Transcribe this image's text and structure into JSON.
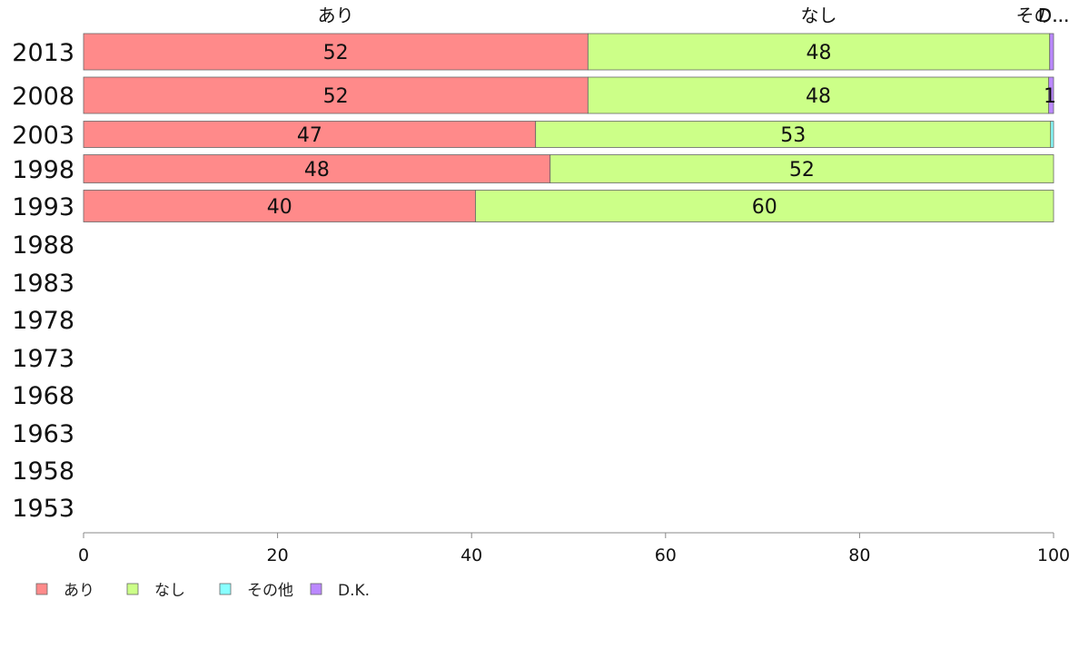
{
  "chart_data": {
    "type": "bar",
    "orientation": "horizontal",
    "stacked": true,
    "categories": [
      "2013",
      "2008",
      "2003",
      "1998",
      "1993",
      "1988",
      "1983",
      "1978",
      "1973",
      "1968",
      "1963",
      "1958",
      "1953"
    ],
    "series": [
      {
        "name": "あり",
        "color": "#ff8a8a",
        "values": [
          52,
          52,
          46.6,
          48.1,
          40.4,
          null,
          null,
          null,
          null,
          null,
          null,
          null,
          null
        ]
      },
      {
        "name": "なし",
        "color": "#ccff88",
        "values": [
          47.6,
          47.5,
          53.1,
          51.9,
          59.6,
          null,
          null,
          null,
          null,
          null,
          null,
          null,
          null
        ]
      },
      {
        "name": "その他",
        "color": "#88ffff",
        "values": [
          0,
          0,
          0.3,
          0,
          0,
          null,
          null,
          null,
          null,
          null,
          null,
          null,
          null
        ]
      },
      {
        "name": "D.K.",
        "color": "#bb88ff",
        "values": [
          0.4,
          0.5,
          0,
          0,
          0,
          null,
          null,
          null,
          null,
          null,
          null,
          null,
          null
        ]
      }
    ],
    "data_labels": [
      [
        "52",
        "48",
        "",
        ""
      ],
      [
        "52",
        "48",
        "",
        "1"
      ],
      [
        "47",
        "53",
        "",
        ""
      ],
      [
        "48",
        "52",
        "",
        ""
      ],
      [
        "40",
        "60",
        "",
        ""
      ]
    ],
    "top_labels": [
      "あり",
      "なし",
      "その...",
      "D..."
    ],
    "xlim": [
      0,
      100
    ],
    "xticks": [
      "0",
      "20",
      "40",
      "60",
      "80",
      "100"
    ],
    "grid": false,
    "legend_position": "bottom-left",
    "title": "",
    "xlabel": "",
    "ylabel": ""
  }
}
